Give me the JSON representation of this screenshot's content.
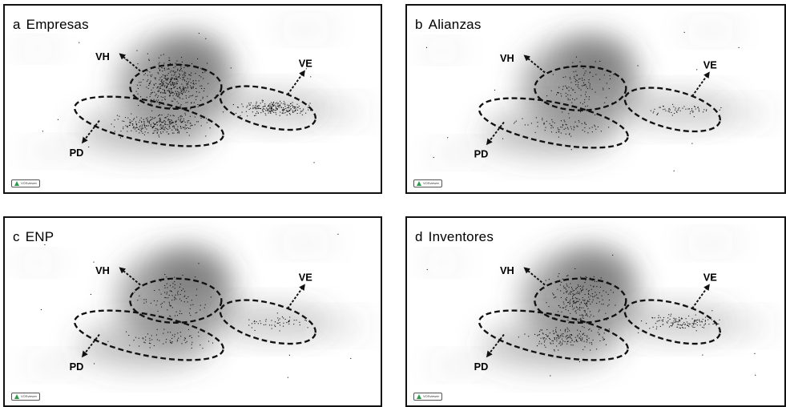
{
  "panels": [
    {
      "letter": "a",
      "title": "Empresas",
      "density": 1.0
    },
    {
      "letter": "b",
      "title": "Alianzas",
      "density": 0.3
    },
    {
      "letter": "c",
      "title": "ENP",
      "density": 0.25
    },
    {
      "letter": "d",
      "title": "Inventores",
      "density": 0.6
    }
  ],
  "labels": {
    "vh": "VH",
    "ve": "VE",
    "pd": "PD"
  },
  "badge_text": "VOSviewer",
  "colors": {
    "border": "#111111",
    "dots": "#111111",
    "blur": "#555555",
    "ellipse": "#111111",
    "badge_icon": "#2e9a4e"
  }
}
